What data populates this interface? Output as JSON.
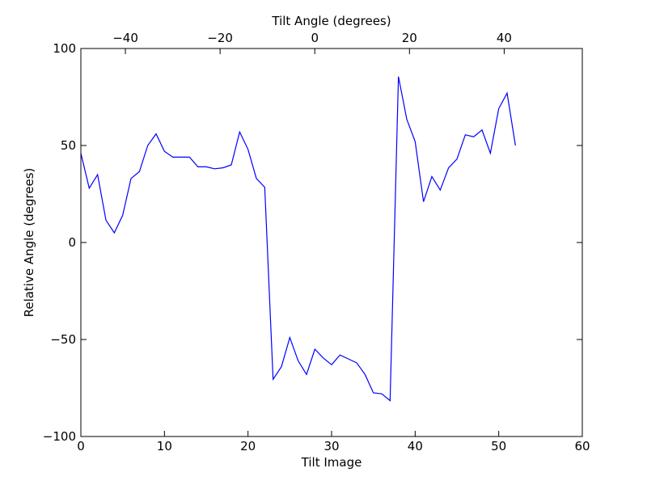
{
  "chart_data": {
    "type": "line",
    "xlabel": "Tilt Image",
    "ylabel": "Relative Angle (degrees)",
    "top_xlabel": "Tilt Angle (degrees)",
    "xlim": [
      0,
      60
    ],
    "ylim": [
      -100,
      100
    ],
    "top_xlim": [
      -49.4,
      56.5
    ],
    "x_ticks": [
      0,
      10,
      20,
      30,
      40,
      50,
      60
    ],
    "y_ticks": [
      -100,
      -50,
      0,
      50,
      100
    ],
    "top_x_ticks": [
      -40,
      -20,
      0,
      20,
      40
    ],
    "x_tick_labels": [
      "0",
      "10",
      "20",
      "30",
      "40",
      "50",
      "60"
    ],
    "y_tick_labels": [
      "−100",
      "−50",
      "0",
      "50",
      "100"
    ],
    "top_x_tick_labels": [
      "−40",
      "−20",
      "0",
      "20",
      "40"
    ],
    "grid": false,
    "line_color": "#0000ff",
    "series": [
      {
        "x": [
          0,
          1,
          2,
          3,
          4,
          5,
          6,
          7,
          8,
          9,
          10,
          11,
          12,
          13,
          14,
          15,
          16,
          17,
          18,
          19,
          20,
          21,
          22,
          23,
          24,
          25,
          26,
          27,
          28,
          29,
          30,
          31,
          32,
          33,
          34,
          35,
          36,
          37,
          38,
          39,
          40,
          41,
          42,
          43,
          44,
          45,
          46,
          47,
          48,
          49,
          50,
          51,
          52
        ],
        "y": [
          46,
          28,
          35,
          11.5,
          5,
          14,
          33,
          36.5,
          50,
          56,
          47,
          44,
          44,
          44,
          39,
          39,
          38,
          38.5,
          40,
          57,
          48,
          33,
          28.5,
          -70.5,
          -64,
          -49,
          -61,
          -68,
          -55,
          -59.5,
          -63,
          -58,
          -60,
          -62,
          -68,
          -77.5,
          -78,
          -81.5,
          85.5,
          63.5,
          52,
          21,
          34,
          27,
          38.5,
          43,
          55.5,
          54.5,
          58,
          46,
          69,
          77,
          50
        ]
      }
    ]
  }
}
